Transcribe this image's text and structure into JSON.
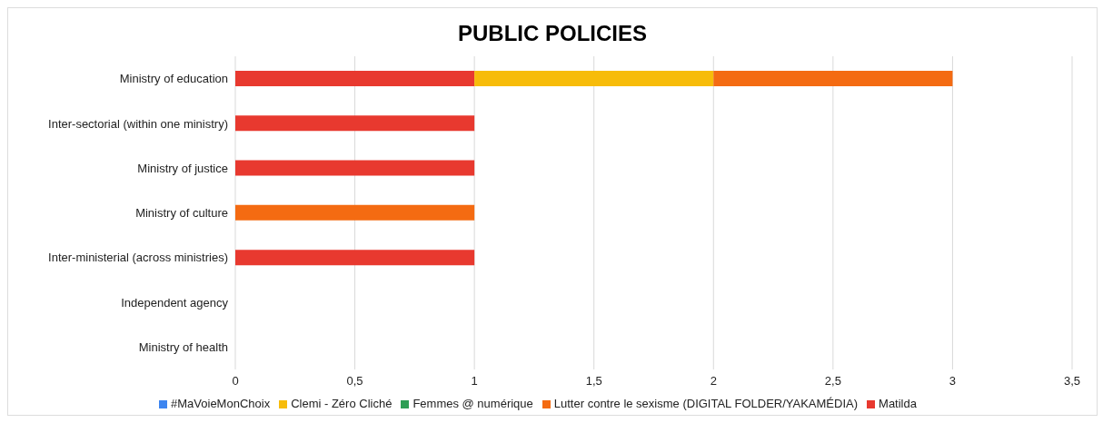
{
  "chart_data": {
    "type": "bar",
    "title": "PUBLIC POLICIES",
    "orientation": "horizontal",
    "stacked": true,
    "categories": [
      "Ministry of education",
      "Inter-sectorial (within one ministry)",
      "Ministry of justice",
      "Ministry of culture",
      "Inter-ministerial (across ministries)",
      "Independent agency",
      "Ministry of health"
    ],
    "series": [
      {
        "name": "#MaVoieMonChoix",
        "color": "#3d85f0",
        "values": [
          0,
          0,
          0,
          0,
          0,
          0,
          0
        ]
      },
      {
        "name": "Matilda",
        "color": "#e8392f",
        "values": [
          1,
          1,
          1,
          0,
          1,
          0,
          0
        ]
      },
      {
        "name": "Clemi - Zéro Cliché",
        "color": "#f7bc0a",
        "values": [
          1,
          0,
          0,
          0,
          0,
          0,
          0
        ]
      },
      {
        "name": "Femmes @ numérique",
        "color": "#2f9e55",
        "values": [
          0,
          0,
          0,
          0,
          0,
          0,
          0
        ]
      },
      {
        "name": "Lutter contre le sexisme  (DIGITAL FOLDER/YAKAMÉDIA)",
        "color": "#f46b12",
        "values": [
          1,
          0,
          0,
          1,
          0,
          0,
          0
        ]
      }
    ],
    "xlim": [
      0,
      3.5
    ],
    "xticks": [
      0,
      {
        "value": 0.5,
        "label": "0,5"
      },
      1,
      {
        "value": 1.5,
        "label": "1,5"
      },
      2,
      {
        "value": 2.5,
        "label": "2,5"
      },
      3,
      {
        "value": 3.5,
        "label": "3,5"
      }
    ],
    "grid": "x",
    "legend": "bottom"
  }
}
